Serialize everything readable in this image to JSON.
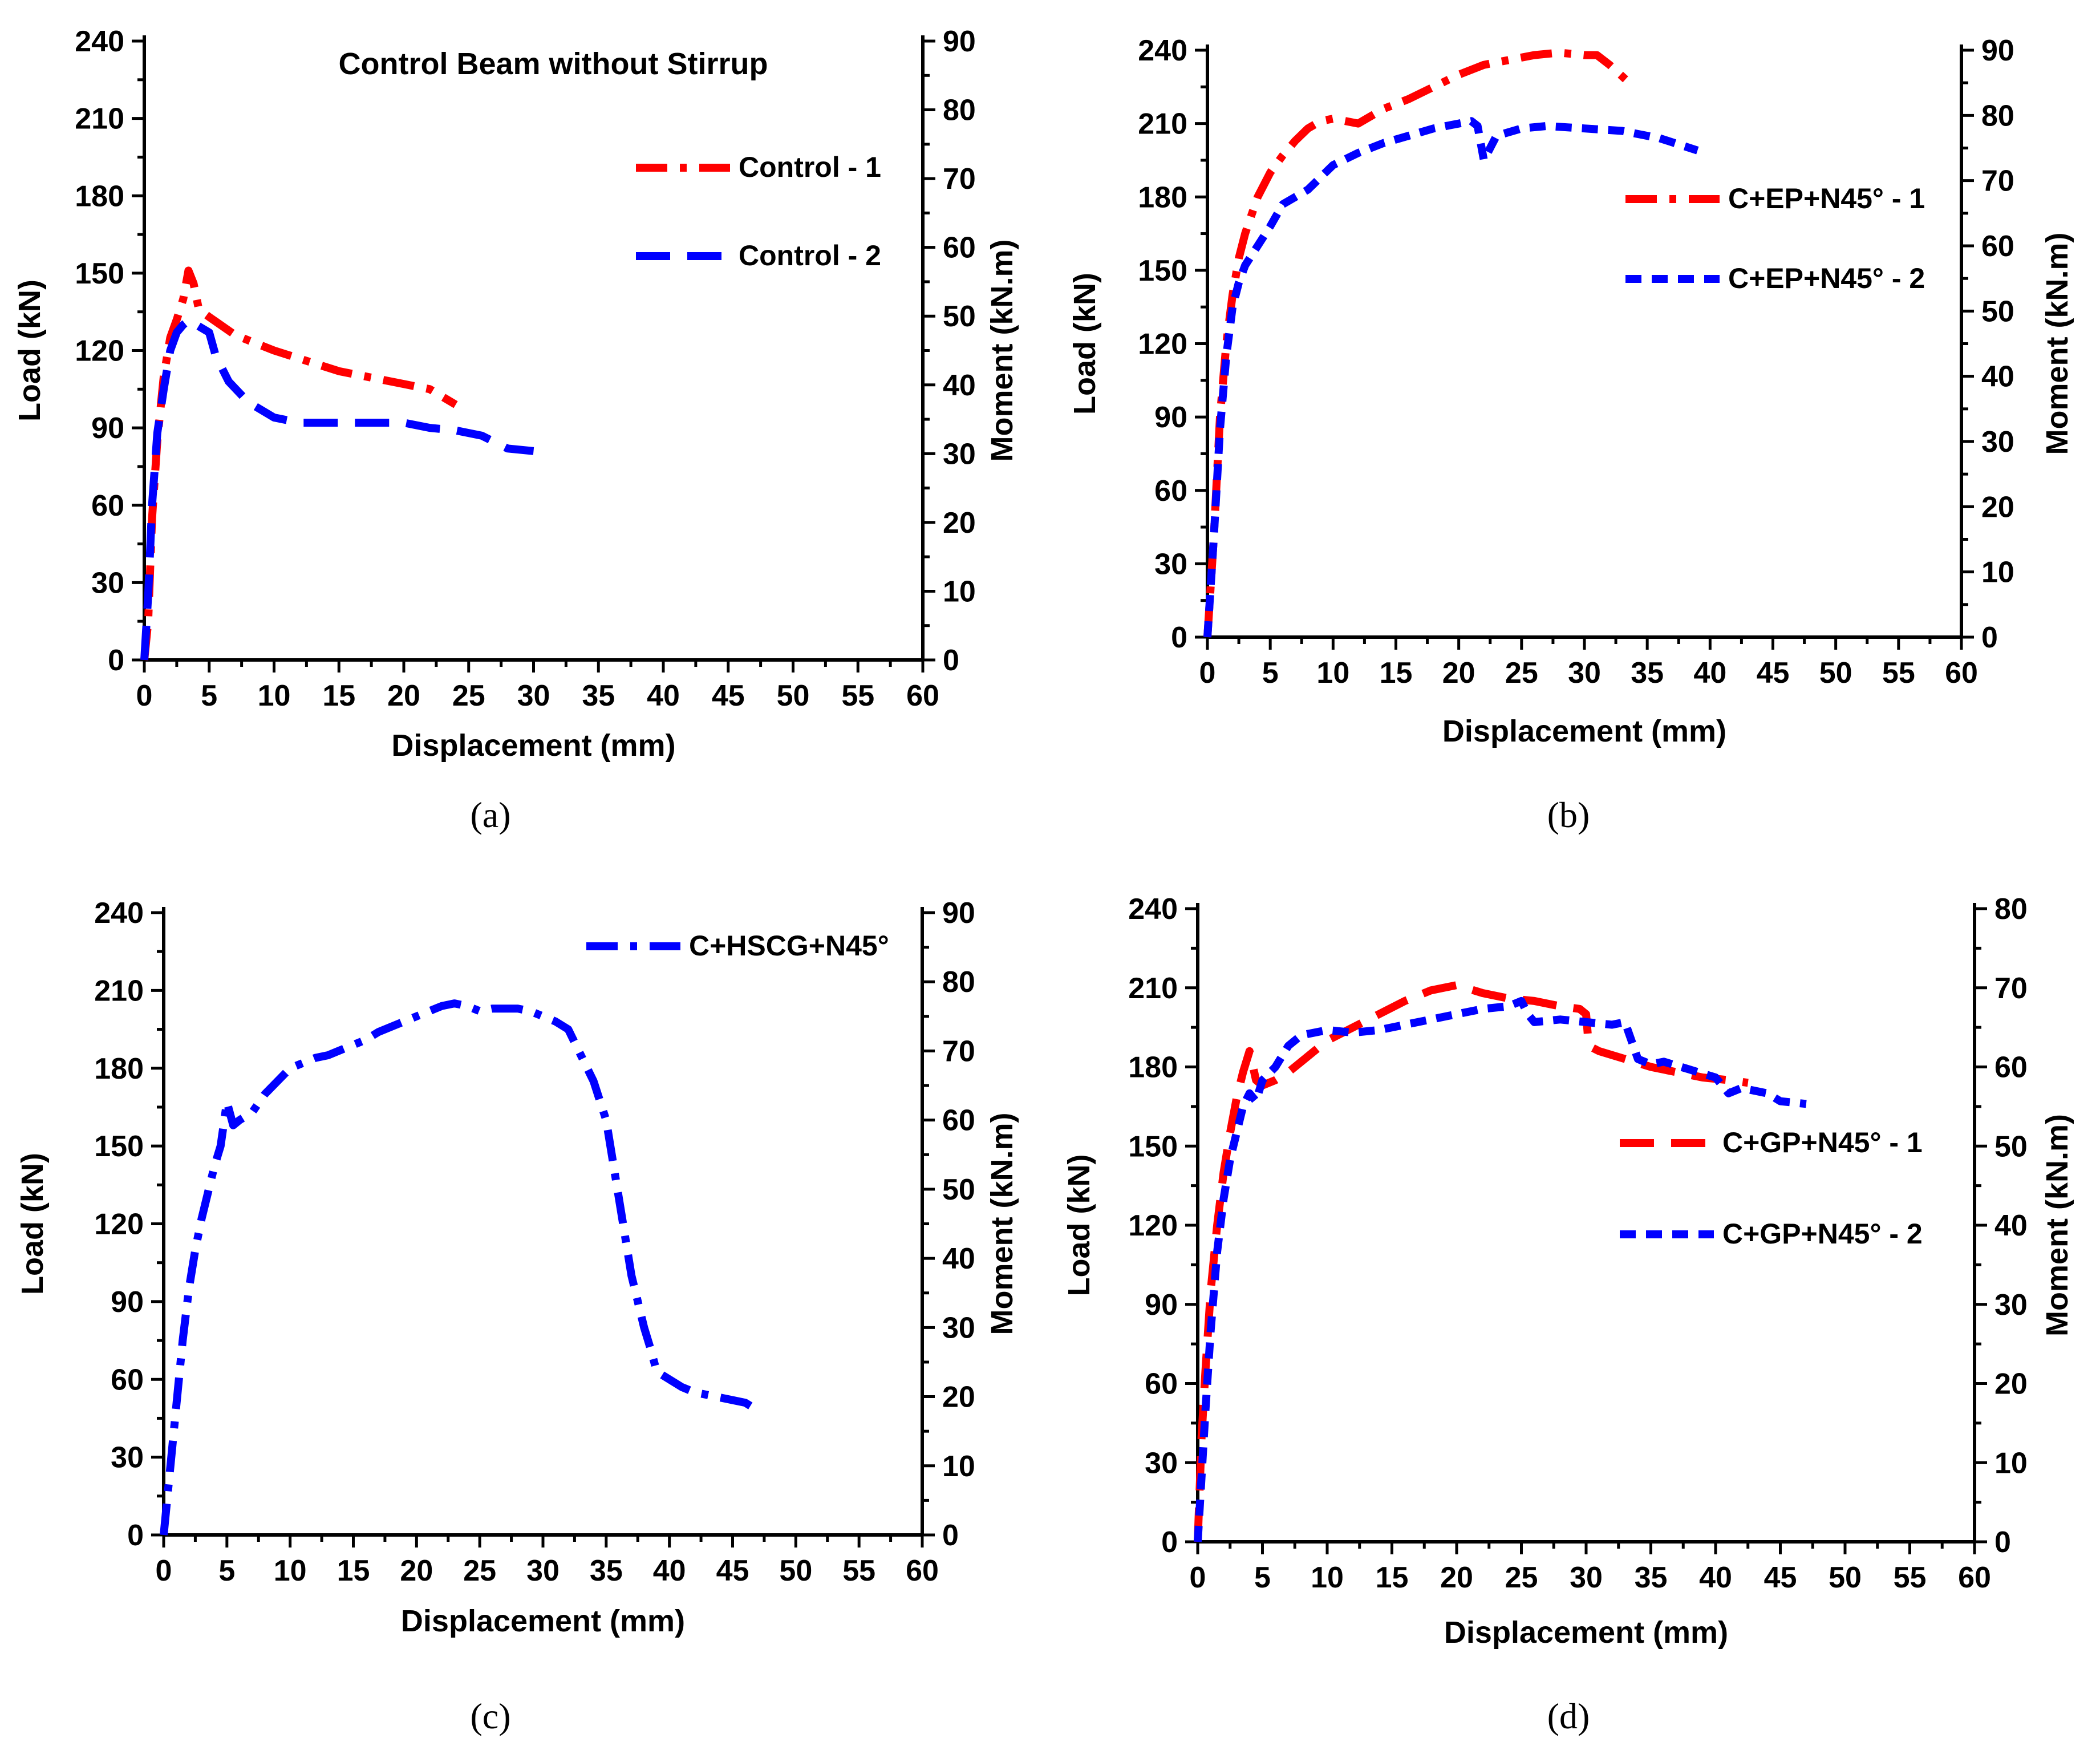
{
  "figure": {
    "description": "Load-displacement curves of beams"
  },
  "chart_data": [
    {
      "type": "line",
      "panel": "(a)",
      "title": "Control Beam without Stirrup",
      "xlabel": "Displacement (mm)",
      "ylabel": "Load (kN)",
      "y2label": "Moment (kN.m)",
      "xlim": [
        0,
        60
      ],
      "xticks": [
        0,
        5,
        10,
        15,
        20,
        25,
        30,
        35,
        40,
        45,
        50,
        55,
        60
      ],
      "ylim": [
        0,
        240
      ],
      "yticks": [
        0,
        30,
        60,
        90,
        120,
        150,
        180,
        210,
        240
      ],
      "y2lim": [
        0,
        90
      ],
      "y2ticks": [
        0,
        10,
        20,
        30,
        40,
        50,
        60,
        70,
        80,
        90
      ],
      "legend_position": "top-right",
      "series": [
        {
          "name": "Control - 1",
          "color": "#ff0000",
          "dash": "dash-dot",
          "x": [
            0,
            0.3,
            0.6,
            1.0,
            1.5,
            2.0,
            2.5,
            3.0,
            3.4,
            3.8,
            4.2,
            5,
            7,
            10,
            15,
            20,
            22,
            24
          ],
          "y": [
            0,
            15,
            55,
            85,
            110,
            125,
            132,
            140,
            151,
            146,
            136,
            133,
            126,
            120,
            112,
            107,
            105,
            99
          ]
        },
        {
          "name": "Control - 2",
          "color": "#0000ff",
          "dash": "dash",
          "x": [
            0,
            0.3,
            0.6,
            1.0,
            1.5,
            2.0,
            2.5,
            3.0,
            3.5,
            4.0,
            5.0,
            5.5,
            6.5,
            8,
            10,
            12,
            14,
            16,
            18,
            20,
            22,
            24,
            26,
            28,
            30
          ],
          "y": [
            0,
            25,
            60,
            88,
            105,
            120,
            127,
            130,
            132,
            130,
            127,
            118,
            108,
            100,
            94,
            92,
            92,
            92,
            92,
            92,
            90,
            89,
            87,
            82,
            81
          ]
        }
      ]
    },
    {
      "type": "line",
      "panel": "(b)",
      "title": "",
      "xlabel": "Displacement (mm)",
      "ylabel": "Load (kN)",
      "y2label": "Moment (kN.m)",
      "xlim": [
        0,
        60
      ],
      "xticks": [
        0,
        5,
        10,
        15,
        20,
        25,
        30,
        35,
        40,
        45,
        50,
        55,
        60
      ],
      "ylim": [
        0,
        240
      ],
      "yticks": [
        0,
        30,
        60,
        90,
        120,
        150,
        180,
        210,
        240
      ],
      "y2lim": [
        0,
        90
      ],
      "y2ticks": [
        0,
        10,
        20,
        30,
        40,
        50,
        60,
        70,
        80,
        90
      ],
      "legend_position": "right",
      "series": [
        {
          "name": "C+EP+N45° - 1",
          "color": "#ff0000",
          "dash": "dash-dot",
          "x": [
            0,
            0.5,
            1,
            1.5,
            2,
            2.5,
            3,
            4,
            5,
            6,
            7,
            8,
            9,
            10,
            12,
            14,
            16,
            18,
            20,
            22,
            24,
            26,
            28,
            30,
            31,
            32,
            33.5
          ],
          "y": [
            0,
            40,
            90,
            120,
            140,
            155,
            165,
            180,
            190,
            197,
            203,
            208,
            211,
            212,
            210,
            216,
            220,
            225,
            230,
            234,
            236,
            238,
            239,
            238,
            238,
            234,
            227
          ]
        },
        {
          "name": "C+EP+N45° - 2",
          "color": "#0000ff",
          "dash": "short-dash",
          "x": [
            0,
            0.5,
            1,
            1.5,
            2,
            2.5,
            3,
            4,
            5,
            6,
            7,
            8,
            10,
            12,
            14,
            16,
            18,
            20,
            21,
            21.5,
            22,
            23,
            25,
            27,
            30,
            33,
            36,
            39
          ],
          "y": [
            0,
            40,
            85,
            115,
            135,
            145,
            152,
            160,
            168,
            177,
            180,
            183,
            193,
            198,
            202,
            205,
            208,
            210,
            211,
            209,
            195,
            205,
            208,
            209,
            208,
            207,
            204,
            199
          ]
        }
      ]
    },
    {
      "type": "line",
      "panel": "(c)",
      "title": "",
      "xlabel": "Displacement (mm)",
      "ylabel": "Load (kN)",
      "y2label": "Moment (kN.m)",
      "xlim": [
        0,
        60
      ],
      "xticks": [
        0,
        5,
        10,
        15,
        20,
        25,
        30,
        35,
        40,
        45,
        50,
        55,
        60
      ],
      "ylim": [
        0,
        240
      ],
      "yticks": [
        0,
        30,
        60,
        90,
        120,
        150,
        180,
        210,
        240
      ],
      "y2lim": [
        0,
        90
      ],
      "y2ticks": [
        0,
        10,
        20,
        30,
        40,
        50,
        60,
        70,
        80,
        90
      ],
      "legend_position": "top-right",
      "series": [
        {
          "name": "C+HSCG+N45°",
          "color": "#0000ff",
          "dash": "dash-dot",
          "x": [
            0,
            0.5,
            1,
            1.5,
            2,
            2.5,
            3,
            3.5,
            4,
            4.5,
            5,
            5.5,
            6,
            7,
            8,
            9,
            10,
            11,
            12,
            13,
            14,
            15,
            16,
            17,
            18,
            19,
            20,
            21,
            22,
            23,
            24,
            25,
            26,
            27,
            28,
            29,
            30,
            31,
            32,
            33,
            34,
            35,
            35.5,
            36,
            36.5,
            37,
            37.5,
            38,
            38.5,
            39,
            40,
            41,
            42,
            43,
            44,
            45,
            46,
            47
          ],
          "y": [
            0,
            25,
            50,
            75,
            95,
            110,
            122,
            132,
            142,
            150,
            167,
            158,
            160,
            163,
            170,
            175,
            180,
            182,
            184,
            185,
            187,
            189,
            191,
            194,
            196,
            198,
            200,
            202,
            204,
            205,
            204,
            202,
            203,
            203,
            203,
            202,
            200,
            198,
            195,
            185,
            175,
            160,
            145,
            130,
            115,
            100,
            90,
            80,
            72,
            63,
            60,
            57,
            55,
            54,
            53,
            52,
            51,
            48
          ]
        }
      ]
    },
    {
      "type": "line",
      "panel": "(d)",
      "title": "",
      "xlabel": "Displacement (mm)",
      "ylabel": "Load (kN)",
      "y2label": "Moment (kN.m)",
      "xlim": [
        0,
        60
      ],
      "xticks": [
        0,
        5,
        10,
        15,
        20,
        25,
        30,
        35,
        40,
        45,
        50,
        55,
        60
      ],
      "ylim": [
        0,
        240
      ],
      "yticks": [
        0,
        30,
        60,
        90,
        120,
        150,
        180,
        210,
        240
      ],
      "y2lim": [
        0,
        80
      ],
      "y2ticks": [
        0,
        10,
        20,
        30,
        40,
        50,
        60,
        70,
        80
      ],
      "legend_position": "right",
      "series": [
        {
          "name": "C+GP+N45° - 1",
          "color": "#ff0000",
          "dash": "dash",
          "x": [
            0,
            0.3,
            0.6,
            1,
            1.5,
            2,
            2.5,
            3,
            3.5,
            4,
            4.5,
            5,
            6,
            7,
            8,
            10,
            12,
            14,
            16,
            18,
            20,
            22,
            24,
            26,
            28,
            29.5,
            30,
            30.2,
            31,
            33,
            35,
            37,
            39,
            41,
            42.5
          ],
          "y": [
            0,
            40,
            65,
            95,
            120,
            140,
            155,
            168,
            178,
            186,
            175,
            173,
            175,
            178,
            182,
            190,
            195,
            200,
            205,
            209,
            211,
            208,
            206,
            205,
            203,
            202,
            200,
            188,
            186,
            183,
            180,
            178,
            176,
            175,
            174
          ]
        },
        {
          "name": "C+GP+N45° - 2",
          "color": "#0000ff",
          "dash": "short-dash",
          "x": [
            0,
            0.3,
            0.6,
            1,
            1.5,
            2,
            2.5,
            3,
            3.5,
            4,
            4.5,
            5,
            6,
            7,
            8,
            10,
            12,
            14,
            16,
            18,
            20,
            22,
            24,
            25,
            25.5,
            26,
            28,
            30,
            32,
            33,
            34,
            35,
            36,
            38,
            40,
            41,
            42,
            44,
            45,
            47
          ],
          "y": [
            0,
            25,
            50,
            80,
            110,
            130,
            145,
            155,
            165,
            170,
            167,
            175,
            180,
            188,
            192,
            194,
            193,
            194,
            196,
            198,
            200,
            202,
            203,
            205,
            200,
            197,
            198,
            197,
            196,
            197,
            183,
            181,
            182,
            179,
            176,
            170,
            172,
            170,
            167,
            166
          ]
        }
      ]
    }
  ],
  "captions": [
    "(a)",
    "(b)",
    "(c)",
    "(d)"
  ]
}
